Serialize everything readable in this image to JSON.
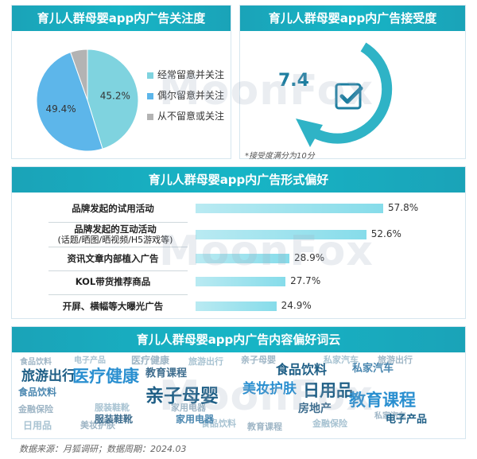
{
  "panels": {
    "attention": {
      "title": "育儿人群母婴app内广告关注度",
      "legend": [
        "经常留意并关注",
        "偶尔留意并关注",
        "从不留意或关注"
      ]
    },
    "acceptance": {
      "title": "育儿人群母婴app内广告接受度",
      "score": "7.4",
      "note": "*接受度满分为10分"
    },
    "format": {
      "title": "育儿人群母婴app内广告形式偏好"
    },
    "content": {
      "title": "育儿人群母婴app内广告内容偏好词云"
    }
  },
  "wordcloud_words": [
    "旅游出行",
    "医疗健康",
    "亲子母婴",
    "食品饮料",
    "日用品",
    "教育课程",
    "美妆护肤",
    "房地产",
    "服装鞋靴",
    "家用电器",
    "金融保险",
    "私家汽车",
    "电子产品"
  ],
  "watermark": "MoonFox",
  "source": "数据来源：月狐调研；数据周期：2024.03",
  "colors": {
    "header": "#1aa3b8",
    "pie_often": "#7fd3df",
    "pie_sometimes": "#5db6ea",
    "pie_never": "#b3b3b3",
    "bar": "#86dcea",
    "arrow": "#2fb3c6",
    "score": "#1e7ea0"
  },
  "chart_data": [
    {
      "type": "pie",
      "title": "育儿人群母婴app内广告关注度",
      "labels": [
        "经常留意并关注",
        "偶尔留意并关注",
        "从不留意或关注"
      ],
      "values": [
        45.2,
        49.4,
        5.4
      ],
      "value_labels": [
        "45.2%",
        "49.4%",
        ""
      ],
      "legend": "right"
    },
    {
      "type": "bar",
      "orientation": "horizontal",
      "title": "育儿人群母婴app内广告形式偏好",
      "categories": [
        "品牌发起的试用活动",
        "品牌发起的互动活动",
        "资讯文章内部植入广告",
        "KOL带货推荐商品",
        "开屏、横幅等大曝光广告"
      ],
      "category_notes": [
        "",
        "(话题/晒图/晒视频/H5游戏等)",
        "",
        "",
        ""
      ],
      "values": [
        57.8,
        52.6,
        28.9,
        27.7,
        24.9
      ],
      "value_labels": [
        "57.8%",
        "52.6%",
        "28.9%",
        "27.7%",
        "24.9%"
      ]
    }
  ]
}
